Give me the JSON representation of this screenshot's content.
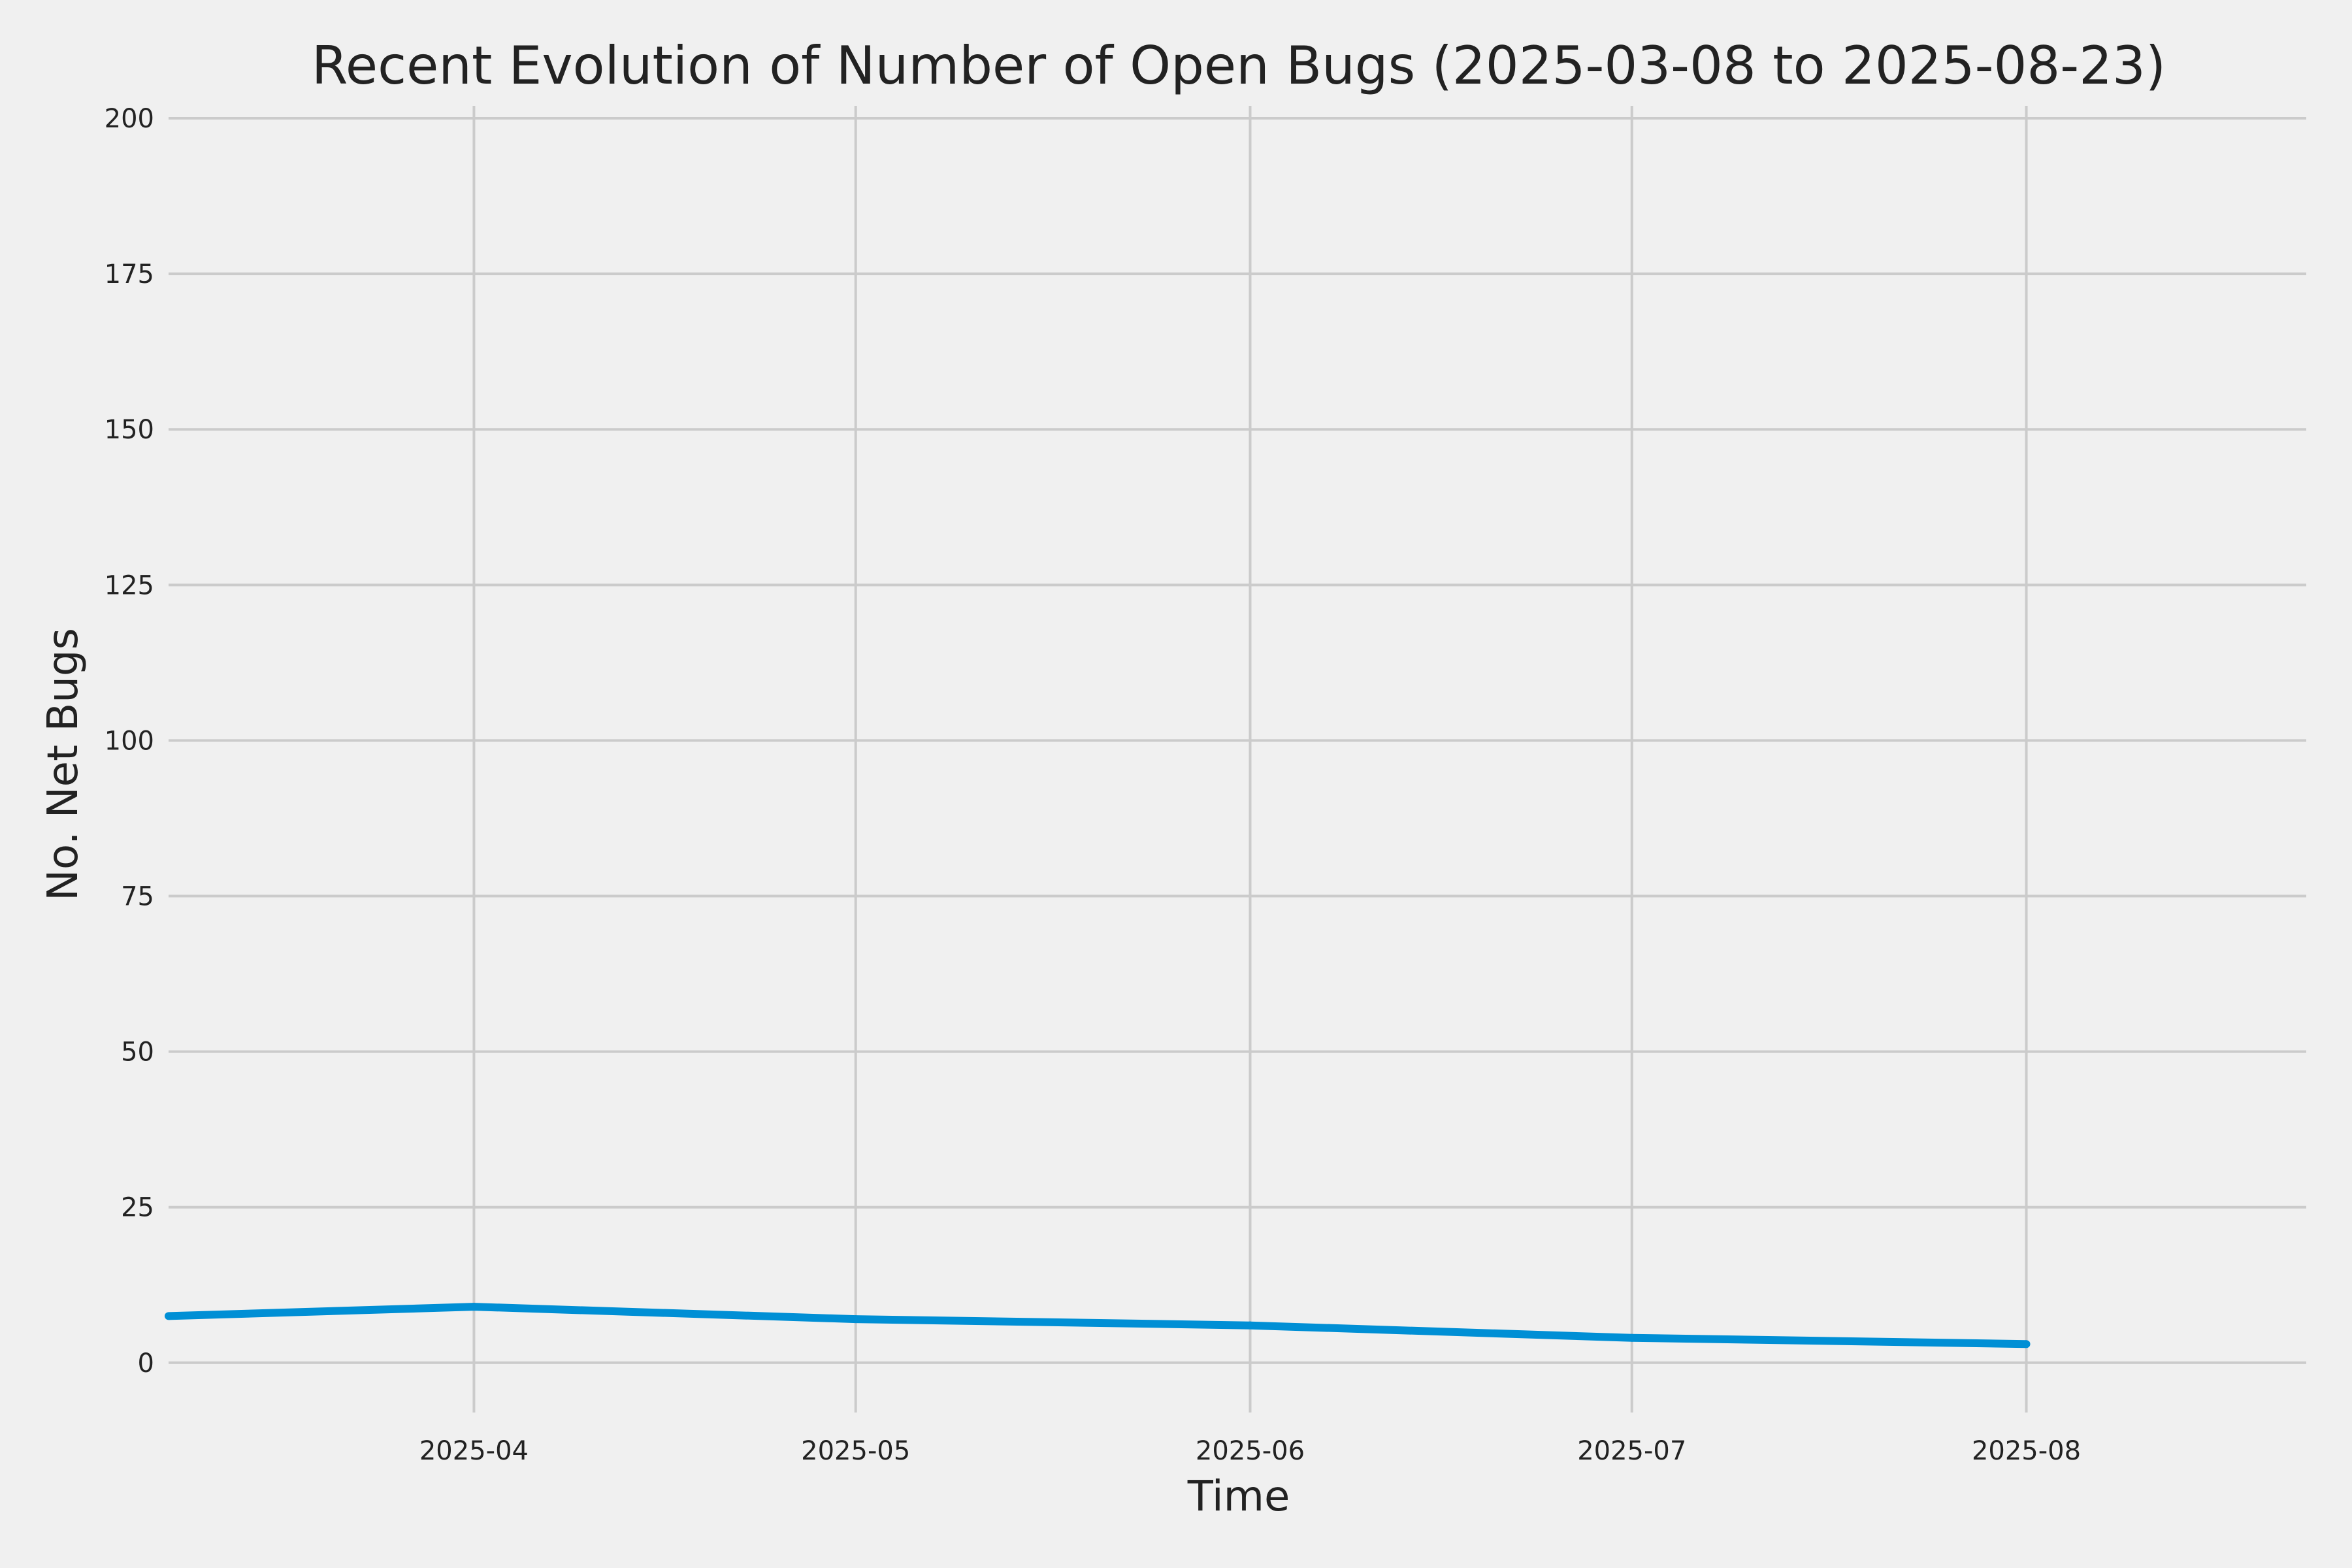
{
  "chart_data": {
    "type": "line",
    "title": "Recent Evolution of Number of Open Bugs (2025-03-08 to 2025-08-23)",
    "xlabel": "Time",
    "ylabel": "No. Net Bugs",
    "xlim": [
      "2025-03-08",
      "2025-08-23"
    ],
    "ylim": [
      -8,
      202
    ],
    "grid": true,
    "x_ticks": [
      "2025-04-01",
      "2025-05-01",
      "2025-06-01",
      "2025-07-01",
      "2025-08-01"
    ],
    "x_tick_labels": [
      "2025-04",
      "2025-05",
      "2025-06",
      "2025-07",
      "2025-08"
    ],
    "y_ticks": [
      0,
      25,
      50,
      75,
      100,
      125,
      150,
      175,
      200
    ],
    "y_tick_labels": [
      "0",
      "25",
      "50",
      "75",
      "100",
      "125",
      "150",
      "175",
      "200"
    ],
    "series": [
      {
        "color": "#008fd5",
        "x": [
          "2025-03-08",
          "2025-04-01",
          "2025-05-01",
          "2025-06-01",
          "2025-07-01",
          "2025-08-01"
        ],
        "y": [
          7.5,
          9,
          7,
          6,
          4,
          3
        ]
      }
    ]
  }
}
